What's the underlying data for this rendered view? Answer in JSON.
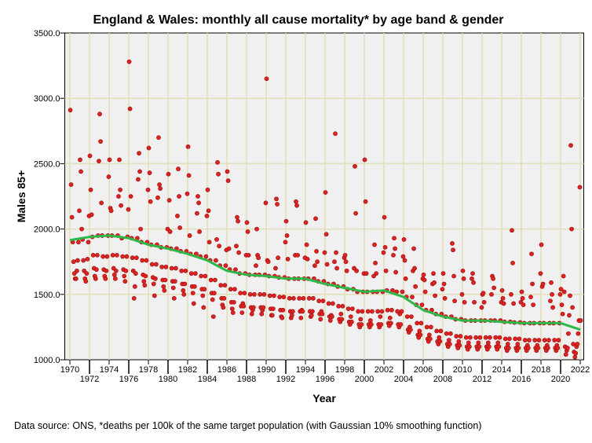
{
  "chart_data": {
    "type": "scatter",
    "title": "England & Wales: monthly all cause mortality* by age band & gender",
    "xlabel": "Year",
    "ylabel": "Males 85+",
    "footnote": "Data source: ONS, *deaths per 100k of the same target population (with Gaussian 10% smoothing function)",
    "xlim": [
      1969.5,
      2022.4
    ],
    "ylim": [
      1000,
      3500
    ],
    "yticks": [
      "1000.0",
      "1500.0",
      "2000.0",
      "2500.0",
      "3000.0",
      "3500.0"
    ],
    "ytick_values": [
      1000,
      1500,
      2000,
      2500,
      3000,
      3500
    ],
    "xticks": [
      "1970",
      "1972",
      "1974",
      "1976",
      "1978",
      "1980",
      "1982",
      "1984",
      "1986",
      "1988",
      "1990",
      "1992",
      "1994",
      "1996",
      "1998",
      "2000",
      "2002",
      "2004",
      "2006",
      "2008",
      "2010",
      "2012",
      "2014",
      "2016",
      "2018",
      "2020",
      "2022"
    ],
    "grid": true,
    "colors": {
      "points": "#dd2222",
      "point_stroke": "#9a1010",
      "trend": "#2db84a",
      "grid": "#e2deb8",
      "plot_bg": "#f0f0f0"
    },
    "start_year": 1970,
    "monthly": [
      [
        2910,
        2340,
        2090,
        1900,
        1750,
        1660,
        1620,
        1620,
        1680,
        1760,
        1900,
        2140
      ],
      [
        2530,
        2440,
        2000,
        1920,
        1760,
        1680,
        1620,
        1600,
        1660,
        1770,
        1900,
        2100
      ],
      [
        2560,
        2300,
        2110,
        1940,
        1800,
        1700,
        1640,
        1620,
        1690,
        1800,
        1950,
        2520
      ],
      [
        2880,
        2670,
        2200,
        1950,
        1790,
        1690,
        1640,
        1620,
        1680,
        1790,
        1950,
        2400
      ],
      [
        2530,
        2160,
        2140,
        1950,
        1800,
        1700,
        1650,
        1620,
        1680,
        1800,
        1950,
        2250
      ],
      [
        2530,
        2300,
        2180,
        1930,
        1790,
        1690,
        1640,
        1600,
        1680,
        1790,
        1940,
        2150
      ],
      [
        3280,
        2920,
        2250,
        1930,
        1780,
        1680,
        1470,
        1560,
        1660,
        1780,
        1930,
        2380
      ],
      [
        2580,
        2440,
        2000,
        1900,
        1760,
        1650,
        1600,
        1570,
        1640,
        1760,
        1900,
        2300
      ],
      [
        2620,
        2430,
        2210,
        1880,
        1730,
        1630,
        1580,
        1490,
        1620,
        1730,
        1880,
        2240
      ],
      [
        2700,
        2340,
        2310,
        1860,
        1710,
        1610,
        1560,
        1530,
        1610,
        1710,
        1860,
        2000
      ],
      [
        2420,
        2220,
        1980,
        1850,
        1700,
        1600,
        1550,
        1470,
        1600,
        1700,
        1850,
        2100
      ],
      [
        2460,
        2250,
        2010,
        1830,
        1680,
        1580,
        1530,
        1500,
        1580,
        1680,
        1830,
        2270
      ],
      [
        2630,
        2410,
        1950,
        1810,
        1660,
        1560,
        1510,
        1430,
        1560,
        1660,
        1810,
        2120
      ],
      [
        2250,
        2200,
        1980,
        1790,
        1640,
        1540,
        1490,
        1400,
        1540,
        1640,
        1790,
        2100
      ],
      [
        2300,
        2140,
        1900,
        1760,
        1610,
        1510,
        1460,
        1330,
        1510,
        1610,
        1760,
        1920
      ],
      [
        2510,
        2420,
        1870,
        1720,
        1570,
        1470,
        1420,
        1400,
        1470,
        1570,
        1720,
        1840
      ],
      [
        2440,
        2370,
        1850,
        1690,
        1540,
        1440,
        1390,
        1360,
        1440,
        1540,
        1690,
        1870
      ],
      [
        2090,
        2060,
        1820,
        1660,
        1510,
        1410,
        1360,
        1430,
        1410,
        1510,
        1660,
        1800
      ],
      [
        2050,
        1980,
        1800,
        1650,
        1500,
        1400,
        1350,
        1380,
        1400,
        1500,
        1650,
        1720
      ],
      [
        2000,
        1800,
        1780,
        1650,
        1500,
        1400,
        1350,
        1380,
        1400,
        1500,
        1650,
        2200
      ],
      [
        3150,
        1760,
        1750,
        1640,
        1490,
        1390,
        1340,
        1340,
        1390,
        1490,
        1640,
        1700
      ],
      [
        2230,
        2190,
        1780,
        1630,
        1480,
        1380,
        1330,
        1320,
        1380,
        1480,
        1630,
        1900
      ],
      [
        2060,
        1950,
        1770,
        1620,
        1470,
        1370,
        1320,
        1340,
        1370,
        1470,
        1620,
        1800
      ],
      [
        2210,
        2180,
        1800,
        1620,
        1470,
        1370,
        1320,
        1380,
        1370,
        1470,
        1620,
        1780
      ],
      [
        2050,
        1880,
        1770,
        1620,
        1470,
        1370,
        1330,
        1340,
        1370,
        1470,
        1620,
        1720
      ],
      [
        2080,
        1830,
        1750,
        1600,
        1450,
        1350,
        1310,
        1370,
        1350,
        1450,
        1600,
        1820
      ],
      [
        2280,
        1960,
        1730,
        1580,
        1430,
        1330,
        1300,
        1340,
        1330,
        1430,
        1580,
        1750
      ],
      [
        2730,
        1820,
        1700,
        1560,
        1410,
        1310,
        1290,
        1350,
        1310,
        1410,
        1560,
        1780
      ],
      [
        1800,
        1750,
        1680,
        1540,
        1390,
        1290,
        1270,
        1330,
        1290,
        1390,
        1540,
        1700
      ],
      [
        2480,
        2120,
        1680,
        1520,
        1370,
        1270,
        1250,
        1310,
        1270,
        1370,
        1520,
        1660
      ],
      [
        2530,
        2210,
        1660,
        1520,
        1370,
        1270,
        1250,
        1300,
        1270,
        1370,
        1520,
        1640
      ],
      [
        1880,
        1740,
        1660,
        1520,
        1370,
        1270,
        1250,
        1330,
        1270,
        1370,
        1520,
        1820
      ],
      [
        2090,
        1860,
        1680,
        1530,
        1380,
        1280,
        1260,
        1320,
        1280,
        1380,
        1530,
        1800
      ],
      [
        1930,
        1850,
        1670,
        1520,
        1370,
        1270,
        1250,
        1350,
        1270,
        1370,
        1520,
        1790
      ],
      [
        1920,
        1760,
        1620,
        1480,
        1330,
        1230,
        1210,
        1250,
        1230,
        1330,
        1480,
        1680
      ],
      [
        1850,
        1700,
        1560,
        1420,
        1280,
        1190,
        1170,
        1220,
        1190,
        1280,
        1420,
        1620
      ],
      [
        1650,
        1610,
        1520,
        1380,
        1250,
        1160,
        1140,
        1190,
        1160,
        1250,
        1380,
        1580
      ],
      [
        1660,
        1590,
        1490,
        1350,
        1220,
        1140,
        1120,
        1170,
        1140,
        1220,
        1350,
        1540
      ],
      [
        1660,
        1580,
        1470,
        1330,
        1200,
        1120,
        1100,
        1150,
        1120,
        1200,
        1330,
        1890
      ],
      [
        1840,
        1640,
        1450,
        1310,
        1180,
        1110,
        1090,
        1140,
        1110,
        1180,
        1310,
        1500
      ],
      [
        1680,
        1620,
        1440,
        1300,
        1170,
        1100,
        1080,
        1130,
        1100,
        1170,
        1300,
        1620
      ],
      [
        1660,
        1590,
        1440,
        1300,
        1170,
        1100,
        1080,
        1130,
        1100,
        1170,
        1300,
        1400
      ],
      [
        1500,
        1510,
        1440,
        1300,
        1170,
        1100,
        1080,
        1130,
        1100,
        1170,
        1300,
        1500
      ],
      [
        1640,
        1620,
        1550,
        1300,
        1170,
        1100,
        1080,
        1130,
        1100,
        1170,
        1300,
        1440
      ],
      [
        1530,
        1470,
        1430,
        1290,
        1160,
        1090,
        1070,
        1120,
        1090,
        1160,
        1290,
        1500
      ],
      [
        1990,
        1740,
        1430,
        1285,
        1160,
        1090,
        1070,
        1120,
        1090,
        1160,
        1285,
        1440
      ],
      [
        1520,
        1470,
        1420,
        1280,
        1150,
        1090,
        1070,
        1110,
        1090,
        1150,
        1280,
        1480
      ],
      [
        1810,
        1580,
        1420,
        1280,
        1150,
        1090,
        1070,
        1110,
        1090,
        1150,
        1280,
        1660
      ],
      [
        1880,
        1560,
        1580,
        1280,
        1150,
        1090,
        1070,
        1110,
        1090,
        1150,
        1280,
        1450
      ],
      [
        1590,
        1500,
        1400,
        1280,
        1150,
        1090,
        1070,
        1110,
        1090,
        1150,
        1280,
        1500
      ],
      [
        1540,
        1420,
        1350,
        1640,
        1520,
        1100,
        1040,
        1070,
        1090,
        1200,
        1340,
        1490
      ],
      [
        2640,
        2000,
        1400,
        1120,
        1060,
        1020,
        1050,
        1100,
        1120,
        1200,
        1300,
        2320
      ],
      [
        1300
      ]
    ],
    "trend": {
      "x": [
        1970,
        1972,
        1974,
        1976,
        1978,
        1980,
        1982,
        1984,
        1986,
        1988,
        1990,
        1992,
        1994,
        1996,
        1998,
        2000,
        2002,
        2004,
        2006,
        2008,
        2010,
        2012,
        2014,
        2016,
        2018,
        2020,
        2022
      ],
      "y": [
        1915,
        1940,
        1950,
        1930,
        1880,
        1850,
        1810,
        1760,
        1680,
        1650,
        1640,
        1620,
        1620,
        1580,
        1550,
        1520,
        1530,
        1480,
        1380,
        1330,
        1300,
        1300,
        1290,
        1280,
        1280,
        1280,
        1230
      ]
    }
  }
}
